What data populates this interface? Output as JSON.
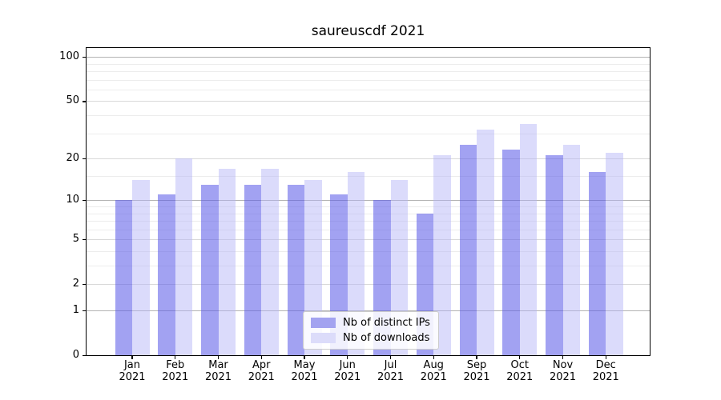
{
  "chart_data": {
    "type": "bar",
    "title": "saureuscdf 2021",
    "categories": [
      "Jan",
      "Feb",
      "Mar",
      "Apr",
      "May",
      "Jun",
      "Jul",
      "Aug",
      "Sep",
      "Oct",
      "Nov",
      "Dec"
    ],
    "year_label": "2021",
    "series": [
      {
        "name": "Nb of distinct IPs",
        "fill": "rgba(90,90,232,0.56)",
        "legend_color": "#a3a3f0",
        "values": [
          10,
          11,
          13,
          13,
          13,
          11,
          10,
          8,
          25,
          23,
          21,
          16
        ]
      },
      {
        "name": "Nb of downloads",
        "fill": "rgba(180,180,247,0.48)",
        "legend_color": "#dcdcfa",
        "values": [
          14,
          20,
          17,
          17,
          14,
          16,
          14,
          21,
          32,
          35,
          25,
          22
        ]
      }
    ],
    "scale": "log10(value+1)",
    "y_ticks": [
      0,
      1,
      2,
      5,
      10,
      20,
      50,
      100
    ],
    "y_minor_ticks": [
      3,
      4,
      6,
      7,
      8,
      9,
      15,
      30,
      40,
      60,
      70,
      80,
      90
    ],
    "ylim": [
      0,
      117
    ],
    "xlabel": "",
    "ylabel": "",
    "grid": true,
    "legend_position": "lower center"
  },
  "colors": {
    "bar_ips": "#a2a2f0",
    "bar_downloads": "#dcdcfa",
    "grid_major_decade": "#b3b3b3",
    "grid_major_other": "#d9d9d9",
    "grid_minor": "#ececec",
    "axis": "#000000",
    "background": "#ffffff"
  }
}
